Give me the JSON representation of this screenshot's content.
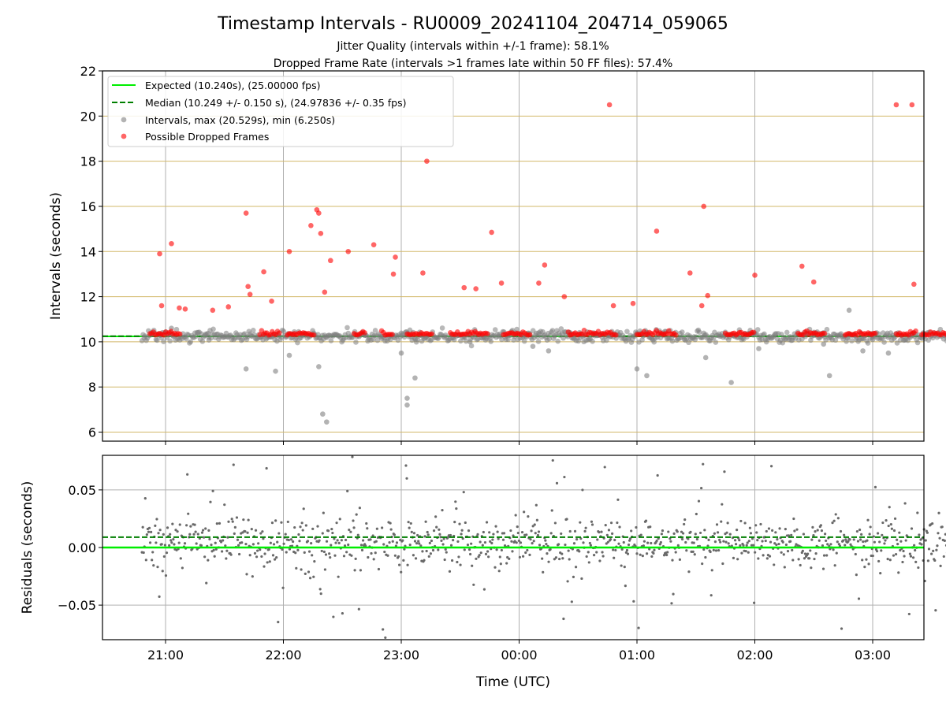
{
  "chart_data": [
    {
      "type": "scatter",
      "title": "Timestamp Intervals - RU0009_20241104_204714_059065",
      "subtitle_1": "Jitter Quality (intervals within +/-1 frame): 58.1%",
      "subtitle_2": "Dropped Frame Rate (intervals >1 frames late within 50 FF files): 57.4%",
      "xlabel": "",
      "ylabel": "Intervals (seconds)",
      "ylim": [
        5.6,
        22
      ],
      "yticks": [
        6,
        8,
        10,
        12,
        14,
        16,
        18,
        20,
        22
      ],
      "ygrid": true,
      "ygrid_color": "#d2b86a",
      "xgrid": true,
      "legend_position": "top-left",
      "legend": [
        {
          "label": "Expected (10.240s), (25.00000 fps)",
          "kind": "line",
          "color": "#00ee00",
          "dash": false
        },
        {
          "label": "Median (10.249 +/- 0.150 s), (24.97836 +/- 0.35 fps)",
          "kind": "line",
          "color": "#007f00",
          "dash": true
        },
        {
          "label": "Intervals, max (20.529s), min (6.250s)",
          "kind": "marker",
          "color": "#808080"
        },
        {
          "label": "Possible Dropped Frames",
          "kind": "marker",
          "color": "#ff0000"
        }
      ],
      "expected_line": 10.24,
      "median_line": 10.249,
      "series": [
        {
          "name": "Intervals, max (20.529s), min (6.250s)",
          "color": "#808080",
          "x": [
            "21:03",
            "21:22",
            "21:41",
            "21:56",
            "22:03",
            "22:18",
            "22:20",
            "22:22",
            "23:00",
            "23:03",
            "23:03",
            "23:07",
            "23:35",
            "00:07",
            "00:10",
            "00:15",
            "01:00",
            "01:05",
            "01:35",
            "01:48",
            "02:02",
            "02:35",
            "02:38",
            "02:48",
            "02:55",
            "03:00",
            "03:08"
          ],
          "y": [
            10.6,
            10.2,
            8.8,
            8.7,
            9.4,
            8.9,
            6.8,
            6.45,
            9.5,
            7.5,
            7.2,
            8.4,
            10.0,
            9.8,
            10.4,
            9.6,
            8.8,
            8.5,
            9.3,
            8.2,
            9.7,
            9.9,
            8.5,
            11.4,
            9.6,
            10.1,
            9.5
          ]
        },
        {
          "name": "Possible Dropped Frames",
          "color": "#ff0000",
          "x": [
            "20:57",
            "20:58",
            "21:03",
            "21:07",
            "21:10",
            "21:24",
            "21:32",
            "21:41",
            "21:42",
            "21:43",
            "21:50",
            "21:54",
            "22:03",
            "22:14",
            "22:17",
            "22:18",
            "22:19",
            "22:21",
            "22:24",
            "22:33",
            "22:46",
            "22:56",
            "22:57",
            "23:11",
            "23:13",
            "23:32",
            "23:38",
            "23:46",
            "23:51",
            "24:10",
            "24:13",
            "24:23",
            "24:46",
            "24:48",
            "24:58",
            "25:10",
            "25:27",
            "25:33",
            "25:34",
            "25:36",
            "26:00",
            "26:24",
            "26:30",
            "27:12",
            "27:20",
            "27:21"
          ],
          "y": [
            13.9,
            11.6,
            14.35,
            11.5,
            11.45,
            11.4,
            11.55,
            15.7,
            12.45,
            12.1,
            13.1,
            11.8,
            14.0,
            15.15,
            15.85,
            15.7,
            14.8,
            12.2,
            13.6,
            14.0,
            14.3,
            13.0,
            13.75,
            13.05,
            18.0,
            12.4,
            12.35,
            14.85,
            12.6,
            12.6,
            13.4,
            12.0,
            20.5,
            11.6,
            11.7,
            14.9,
            13.05,
            11.6,
            16.0,
            12.05,
            12.95,
            13.35,
            12.65,
            20.5,
            20.5,
            12.55
          ]
        }
      ]
    },
    {
      "type": "scatter",
      "xlabel": "Time (UTC)",
      "ylabel": "Residuals (seconds)",
      "ylim": [
        -0.08,
        0.08
      ],
      "yticks": [
        -0.05,
        0.0,
        0.05
      ],
      "ytick_labels": [
        "−0.05",
        "0.00",
        "0.05"
      ],
      "xticks": [
        "21:00",
        "22:00",
        "23:00",
        "00:00",
        "01:00",
        "02:00",
        "03:00"
      ],
      "xgrid": true,
      "ygrid": true,
      "zero_line": 0.0,
      "median_line": 0.009,
      "series": [
        {
          "name": "Residuals",
          "color": "#696969"
        }
      ]
    }
  ]
}
